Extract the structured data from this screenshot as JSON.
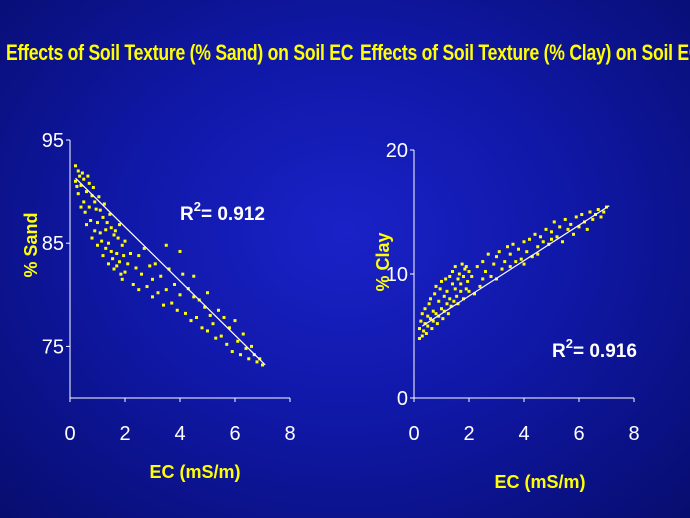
{
  "colors": {
    "background": "#1018a8",
    "title": "#ffff00",
    "points": "#ffff00",
    "axis": "#ffffff"
  },
  "chart_data": [
    {
      "type": "scatter",
      "title": "Effects of Soil Texture (% Sand) on Soil EC",
      "xlabel": "EC (mS/m)",
      "ylabel": "% Sand",
      "xlim": [
        0,
        8
      ],
      "ylim": [
        70,
        95
      ],
      "xticks": [
        0,
        2,
        4,
        6,
        8
      ],
      "yticks": [
        75,
        85,
        95
      ],
      "annotation": {
        "base": "R",
        "sup": "2",
        "text": "= 0.912"
      },
      "trendline": {
        "x": [
          0.2,
          7.1
        ],
        "y": [
          91.3,
          73.2
        ]
      },
      "series": [
        {
          "name": "samples",
          "x": [
            0.2,
            0.2,
            0.25,
            0.3,
            0.3,
            0.35,
            0.4,
            0.4,
            0.45,
            0.5,
            0.5,
            0.55,
            0.6,
            0.6,
            0.65,
            0.7,
            0.7,
            0.75,
            0.8,
            0.8,
            0.85,
            0.9,
            0.9,
            0.95,
            1.0,
            1.0,
            1.05,
            1.1,
            1.1,
            1.15,
            1.2,
            1.2,
            1.25,
            1.3,
            1.3,
            1.35,
            1.4,
            1.4,
            1.45,
            1.5,
            1.5,
            1.55,
            1.6,
            1.6,
            1.65,
            1.7,
            1.7,
            1.75,
            1.8,
            1.8,
            1.85,
            1.9,
            1.9,
            1.95,
            2.0,
            2.0,
            2.1,
            2.2,
            2.3,
            2.4,
            2.5,
            2.5,
            2.6,
            2.7,
            2.8,
            2.9,
            3.0,
            3.0,
            3.1,
            3.2,
            3.3,
            3.4,
            3.5,
            3.5,
            3.6,
            3.7,
            3.8,
            3.9,
            4.0,
            4.0,
            4.1,
            4.2,
            4.3,
            4.4,
            4.5,
            4.5,
            4.6,
            4.7,
            4.8,
            4.9,
            5.0,
            5.0,
            5.1,
            5.2,
            5.3,
            5.4,
            5.5,
            5.6,
            5.7,
            5.8,
            5.9,
            6.0,
            6.1,
            6.2,
            6.3,
            6.4,
            6.5,
            6.6,
            6.7,
            6.8,
            6.9,
            7.0
          ],
          "y": [
            92.5,
            91.0,
            90.5,
            92.0,
            89.8,
            91.5,
            90.6,
            88.5,
            91.8,
            89.0,
            91.2,
            88.0,
            90.0,
            86.8,
            91.5,
            88.5,
            90.8,
            87.2,
            89.6,
            85.5,
            90.4,
            86.2,
            89.0,
            88.3,
            87.0,
            84.8,
            89.5,
            86.0,
            88.2,
            85.2,
            87.5,
            83.8,
            88.8,
            86.3,
            84.5,
            87.0,
            85.0,
            83.0,
            87.8,
            84.2,
            86.5,
            83.5,
            85.8,
            82.5,
            86.2,
            84.0,
            82.8,
            85.5,
            83.2,
            86.8,
            82.0,
            84.8,
            81.5,
            83.8,
            85.2,
            82.2,
            83.0,
            84.0,
            81.0,
            82.6,
            83.8,
            80.5,
            82.0,
            84.5,
            80.8,
            82.8,
            81.5,
            79.8,
            83.0,
            80.2,
            81.8,
            79.0,
            84.8,
            80.5,
            82.5,
            79.2,
            81.0,
            78.5,
            84.2,
            80.0,
            82.0,
            78.2,
            80.6,
            77.5,
            79.8,
            81.8,
            77.8,
            79.5,
            76.8,
            78.8,
            80.2,
            76.5,
            78.0,
            77.2,
            75.8,
            78.5,
            76.0,
            77.8,
            75.2,
            76.8,
            74.5,
            77.5,
            75.5,
            74.2,
            76.2,
            74.8,
            73.8,
            75.0,
            74.2,
            73.5,
            73.8,
            73.2
          ]
        }
      ]
    },
    {
      "type": "scatter",
      "title": "Effects of Soil Texture (% Clay) on Soil EC",
      "xlabel": "EC (mS/m)",
      "ylabel": "% Clay",
      "xlim": [
        0,
        8
      ],
      "ylim": [
        0,
        20
      ],
      "xticks": [
        0,
        2,
        4,
        6,
        8
      ],
      "yticks": [
        0,
        10,
        20
      ],
      "annotation": {
        "base": "R",
        "sup": "2",
        "text": "= 0.916"
      },
      "trendline": {
        "x": [
          0.3,
          7.1
        ],
        "y": [
          5.8,
          15.5
        ]
      },
      "series": [
        {
          "name": "samples",
          "x": [
            0.2,
            0.2,
            0.25,
            0.3,
            0.3,
            0.35,
            0.4,
            0.4,
            0.45,
            0.5,
            0.5,
            0.55,
            0.6,
            0.6,
            0.65,
            0.7,
            0.7,
            0.75,
            0.8,
            0.8,
            0.85,
            0.9,
            0.9,
            0.95,
            1.0,
            1.0,
            1.05,
            1.1,
            1.1,
            1.15,
            1.2,
            1.2,
            1.25,
            1.3,
            1.3,
            1.35,
            1.4,
            1.4,
            1.45,
            1.5,
            1.5,
            1.55,
            1.6,
            1.6,
            1.65,
            1.7,
            1.7,
            1.75,
            1.8,
            1.8,
            1.85,
            1.9,
            1.9,
            1.95,
            2.0,
            2.0,
            2.1,
            2.2,
            2.3,
            2.4,
            2.5,
            2.5,
            2.6,
            2.7,
            2.8,
            2.9,
            3.0,
            3.0,
            3.1,
            3.2,
            3.3,
            3.4,
            3.5,
            3.5,
            3.6,
            3.7,
            3.8,
            3.9,
            4.0,
            4.0,
            4.1,
            4.2,
            4.3,
            4.4,
            4.5,
            4.5,
            4.6,
            4.7,
            4.8,
            4.9,
            5.0,
            5.0,
            5.1,
            5.2,
            5.3,
            5.4,
            5.5,
            5.6,
            5.7,
            5.8,
            5.9,
            6.0,
            6.1,
            6.2,
            6.3,
            6.4,
            6.5,
            6.6,
            6.7,
            6.8,
            6.9,
            7.0
          ],
          "y": [
            4.8,
            5.6,
            6.2,
            5.0,
            6.8,
            5.4,
            6.0,
            7.2,
            5.2,
            6.6,
            5.8,
            7.6,
            6.4,
            8.0,
            5.6,
            7.0,
            6.2,
            8.4,
            6.8,
            9.0,
            6.0,
            7.8,
            6.6,
            8.8,
            7.2,
            9.4,
            6.4,
            8.2,
            7.0,
            9.6,
            7.6,
            8.6,
            6.8,
            9.8,
            8.0,
            7.4,
            9.2,
            10.2,
            7.8,
            8.8,
            10.6,
            8.2,
            9.6,
            7.6,
            10.0,
            8.6,
            9.2,
            10.8,
            8.0,
            9.8,
            10.4,
            8.8,
            10.6,
            9.4,
            8.6,
            10.2,
            9.8,
            8.4,
            10.6,
            9.0,
            11.0,
            9.6,
            10.2,
            11.6,
            9.8,
            10.8,
            11.4,
            9.6,
            11.8,
            10.4,
            11.0,
            12.2,
            10.6,
            11.6,
            12.4,
            11.0,
            12.0,
            11.2,
            12.6,
            10.8,
            11.8,
            12.8,
            11.4,
            13.2,
            12.2,
            11.6,
            13.0,
            12.6,
            13.6,
            12.4,
            13.4,
            12.8,
            14.2,
            13.0,
            13.8,
            12.6,
            14.4,
            13.6,
            14.0,
            13.2,
            14.6,
            13.8,
            14.8,
            14.2,
            13.6,
            15.0,
            14.4,
            14.8,
            15.2,
            14.6,
            15.0,
            15.4
          ]
        }
      ]
    }
  ]
}
